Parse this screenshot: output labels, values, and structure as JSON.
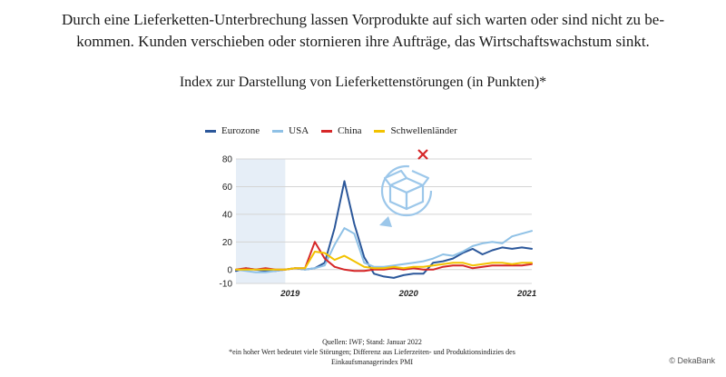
{
  "intro": "Durch eine Lieferketten-Unterbrechung lassen Vorprodukte auf sich warten oder sind nicht zu be­kommen. Kunden verschieben oder stornieren ihre Aufträge, das Wirtschaftswachstum sinkt.",
  "footnote": {
    "sources": "Quellen: IWF; Stand: Januar 2022",
    "note": "*ein hoher Wert bedeutet viele Störungen; Differenz aus Lieferzeiten- und Produktionsindizies des Einkaufsmanagerindex PMI"
  },
  "credit": "© DekaBank",
  "colors": {
    "Eurozone": "#2b579a",
    "USA": "#8fc1e6",
    "China": "#d62728",
    "Schwellenländer": "#f2c200",
    "shade": "#e6eef7",
    "grid": "#d4d4d4",
    "icon": "#9cc7ea",
    "icon_x": "#d62728"
  },
  "icons": [
    "box-icon",
    "refresh-arrow-icon",
    "cross-icon"
  ],
  "chart_data": {
    "type": "line",
    "title": "Index zur Darstellung von Lieferkettenstörungen (in Punkten)*",
    "yticks": [
      80,
      60,
      40,
      20,
      0,
      -10
    ],
    "ylim": [
      -10,
      80
    ],
    "xticks": [
      "2019",
      "2020",
      "2021"
    ],
    "x_period": "monthly, Jan 2019 – Jul 2021",
    "shaded_span": [
      "2019-01",
      "2019-06"
    ],
    "grid": true,
    "legend_position": "top",
    "series": [
      {
        "name": "Eurozone",
        "values": [
          -1,
          1,
          0,
          -1,
          -1,
          0,
          1,
          0,
          1,
          5,
          30,
          64,
          33,
          9,
          -3,
          -5,
          -6,
          -4,
          -3,
          -3,
          5,
          6,
          8,
          12,
          15,
          11,
          14,
          16,
          15,
          16,
          15
        ]
      },
      {
        "name": "USA",
        "values": [
          0,
          -1,
          -2,
          -2,
          -1,
          0,
          1,
          0,
          1,
          3,
          18,
          30,
          26,
          5,
          2,
          2,
          3,
          4,
          5,
          6,
          8,
          11,
          10,
          13,
          17,
          19,
          20,
          19,
          24,
          26,
          28
        ]
      },
      {
        "name": "China",
        "values": [
          0,
          1,
          0,
          1,
          0,
          0,
          1,
          1,
          20,
          8,
          2,
          0,
          -1,
          -1,
          0,
          0,
          1,
          0,
          1,
          0,
          0,
          2,
          3,
          3,
          1,
          2,
          3,
          3,
          3,
          3,
          4
        ]
      },
      {
        "name": "Schwellenländer",
        "values": [
          0,
          0,
          0,
          0,
          0,
          0,
          1,
          1,
          13,
          12,
          7,
          10,
          6,
          2,
          1,
          1,
          2,
          1,
          2,
          2,
          3,
          4,
          5,
          5,
          3,
          4,
          5,
          5,
          4,
          5,
          5
        ]
      }
    ]
  }
}
